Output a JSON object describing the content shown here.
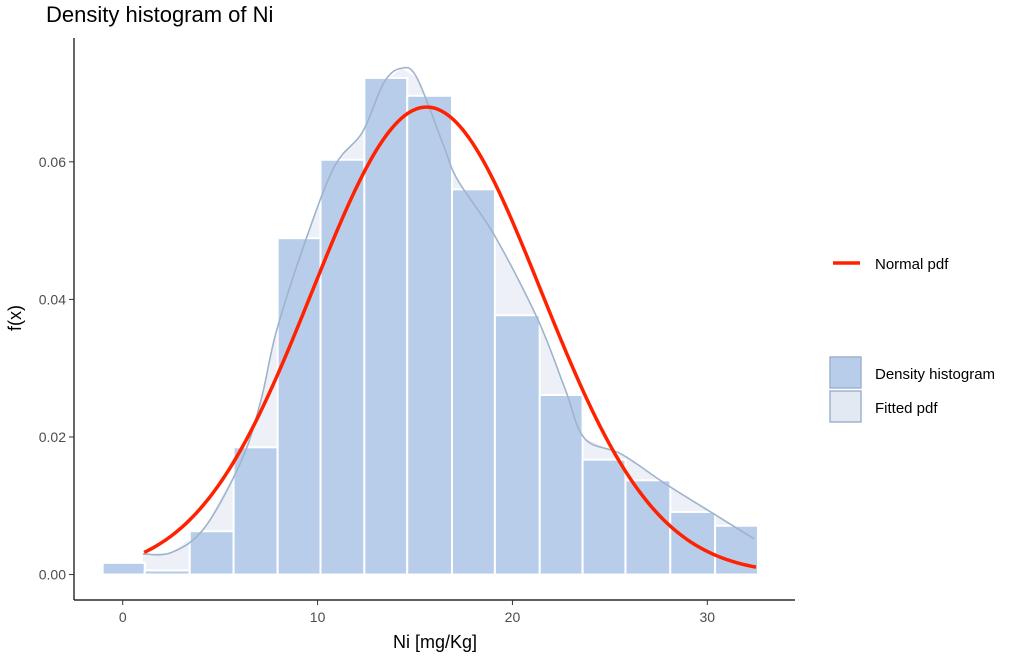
{
  "chart_data": {
    "type": "bar",
    "title": "Density histogram of Ni",
    "xlabel": "Ni [mg/Kg]",
    "ylabel": "f(x)",
    "xlim": [
      -2.5,
      34.5
    ],
    "ylim": [
      -0.0037,
      0.078
    ],
    "xticks": [
      0,
      10,
      20,
      30
    ],
    "xtick_labels": [
      "0",
      "10",
      "20",
      "30"
    ],
    "yticks": [
      0,
      0.02,
      0.04,
      0.06
    ],
    "ytick_labels": [
      "0.00",
      "0.02",
      "0.04",
      "0.06"
    ],
    "grid": false,
    "histogram": {
      "name": "Density histogram",
      "bin_edges": [
        -1.03,
        1.13,
        3.44,
        5.69,
        7.95,
        10.15,
        12.4,
        14.6,
        16.9,
        19.1,
        21.4,
        23.6,
        25.8,
        28.1,
        30.4,
        32.6
      ],
      "density": [
        0.0017,
        0.0006,
        0.0063,
        0.0185,
        0.0489,
        0.0603,
        0.0722,
        0.0696,
        0.056,
        0.0377,
        0.0261,
        0.0167,
        0.0137,
        0.0091,
        0.0071
      ],
      "color": "#b8cde9"
    },
    "fitted_pdf": {
      "name": "Fitted pdf",
      "x": [
        1.03,
        2.5,
        4.2,
        6.1,
        7.1,
        7.9,
        9.5,
        10.9,
        12.3,
        13.4,
        14.3,
        15.1,
        16.5,
        17.2,
        19.1,
        21.3,
        22.7,
        23.7,
        25.6,
        27.9,
        30.4,
        32.4
      ],
      "y": [
        0.003,
        0.0032,
        0.0068,
        0.0166,
        0.0254,
        0.0355,
        0.0495,
        0.0595,
        0.0643,
        0.0715,
        0.0736,
        0.0722,
        0.0621,
        0.0573,
        0.0492,
        0.0371,
        0.027,
        0.0198,
        0.0175,
        0.0131,
        0.0087,
        0.0052
      ],
      "fill": "#e3e9f2",
      "line": "#9fb3cc"
    },
    "normal_pdf": {
      "name": "Normal pdf",
      "mean": 15.6,
      "sd": 5.87,
      "x_range": [
        1.1,
        32.5
      ],
      "color": "#ff2200"
    },
    "legend": {
      "placement": "right",
      "line_label": "Normal pdf",
      "fill_labels": [
        "Density histogram",
        "Fitted pdf"
      ]
    }
  }
}
